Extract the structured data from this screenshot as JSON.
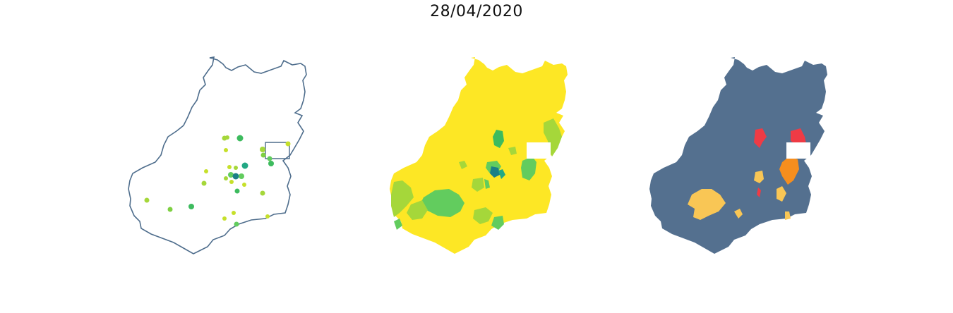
{
  "title": "28/04/2020",
  "colors": {
    "outline": "#4e6d8c",
    "choropleth_base": "#fde725",
    "choropleth_light_green": "#a5d73a",
    "choropleth_green": "#62cc5e",
    "choropleth_teal": "#22a884",
    "choropleth_dark": "#1b7f86",
    "risk_base": "#54708f",
    "risk_yellow": "#f9c655",
    "risk_orange": "#f68e1e",
    "risk_red": "#ef3b45",
    "blank_area": "#ffffff"
  },
  "panels": [
    {
      "name": "case-points-map",
      "type": "point-map"
    },
    {
      "name": "choropleth-map",
      "type": "choropleth"
    },
    {
      "name": "risk-category-map",
      "type": "categorical"
    }
  ]
}
